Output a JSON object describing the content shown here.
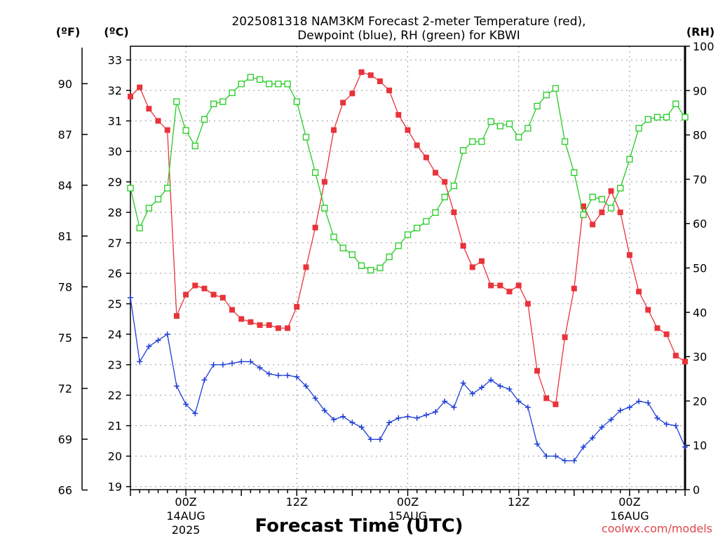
{
  "chart_data": {
    "type": "line",
    "title": "2025081318 NAM3KM Forecast 2-meter Temperature (red),",
    "title_line2": "Dewpoint (blue), RH (green) for KBWI",
    "xlabel": "Forecast Time (UTC)",
    "credit": "coolwx.com/models",
    "units": {
      "fahrenheit": "(ºF)",
      "celsius": "(ºC)",
      "rh": "(RH)"
    },
    "grid": true,
    "x": {
      "start_hour": 0,
      "end_hour": 60,
      "note_hours": "forecast hours from 2025081318"
    },
    "x_ticks": [
      {
        "hour": 6,
        "label": "00Z",
        "date": "14AUG",
        "year": "2025"
      },
      {
        "hour": 18,
        "label": "12Z",
        "date": "",
        "year": ""
      },
      {
        "hour": 30,
        "label": "00Z",
        "date": "15AUG",
        "year": ""
      },
      {
        "hour": 42,
        "label": "12Z",
        "date": "",
        "year": ""
      },
      {
        "hour": 54,
        "label": "00Z",
        "date": "16AUG",
        "year": ""
      }
    ],
    "celsius_axis": {
      "ylim": [
        18.9,
        33.45
      ],
      "ticks": [
        19,
        20,
        21,
        22,
        23,
        24,
        25,
        26,
        27,
        28,
        29,
        30,
        31,
        32,
        33
      ]
    },
    "fahrenheit_axis": {
      "ticks": [
        66,
        69,
        72,
        75,
        78,
        81,
        84,
        87,
        90
      ]
    },
    "rh_axis": {
      "ylim": [
        0,
        100
      ],
      "ticks": [
        0,
        10,
        20,
        30,
        40,
        50,
        60,
        70,
        80,
        90,
        100
      ]
    },
    "colors": {
      "temperature": "#e8333a",
      "dewpoint": "#1f3fd6",
      "rh": "#22cc22"
    },
    "series": [
      {
        "name": "Temperature",
        "axis": "celsius",
        "marker": "filled-square",
        "values": [
          31.8,
          32.1,
          31.4,
          31.0,
          30.7,
          24.6,
          25.3,
          25.6,
          25.5,
          25.3,
          25.2,
          24.8,
          24.5,
          24.4,
          24.3,
          24.3,
          24.2,
          24.2,
          24.9,
          26.2,
          27.5,
          29.0,
          30.7,
          31.6,
          31.9,
          32.6,
          32.5,
          32.3,
          32.0,
          31.2,
          30.7,
          30.2,
          29.8,
          29.3,
          29.0,
          28.0,
          26.9,
          26.2,
          26.4,
          25.6,
          25.6,
          25.4,
          25.6,
          25.0,
          22.8,
          21.9,
          21.7,
          23.9,
          25.5,
          28.2,
          27.6,
          28.0,
          28.7,
          28.0,
          26.6,
          25.4,
          24.8,
          24.2,
          24.0,
          23.3,
          23.1
        ]
      },
      {
        "name": "Dewpoint",
        "axis": "celsius",
        "marker": "plus",
        "values": [
          25.2,
          23.1,
          23.6,
          23.8,
          24.0,
          22.3,
          21.7,
          21.4,
          22.5,
          23.0,
          23.0,
          23.05,
          23.1,
          23.1,
          22.9,
          22.7,
          22.65,
          22.65,
          22.6,
          22.3,
          21.9,
          21.5,
          21.2,
          21.3,
          21.1,
          20.95,
          20.55,
          20.55,
          21.1,
          21.25,
          21.3,
          21.25,
          21.35,
          21.45,
          21.8,
          21.6,
          22.4,
          22.05,
          22.25,
          22.5,
          22.3,
          22.2,
          21.8,
          21.6,
          20.4,
          20.0,
          20.0,
          19.85,
          19.85,
          20.3,
          20.6,
          20.95,
          21.2,
          21.5,
          21.6,
          21.8,
          21.75,
          21.25,
          21.05,
          21.0,
          20.3
        ]
      },
      {
        "name": "RH",
        "axis": "rh",
        "marker": "open-square",
        "values": [
          68,
          59,
          63.5,
          65.5,
          68,
          87.5,
          81,
          77.5,
          83.5,
          87,
          87.5,
          89.5,
          91.5,
          93,
          92.5,
          91.5,
          91.5,
          91.5,
          87.5,
          79.5,
          71.5,
          63.5,
          57,
          54.5,
          53,
          50.5,
          49.5,
          50,
          52.5,
          55,
          57.5,
          59,
          60.5,
          62.5,
          66,
          68.5,
          76.5,
          78.5,
          78.5,
          83,
          82,
          82.5,
          79.5,
          81.5,
          86.5,
          89,
          90.5,
          78.5,
          71.5,
          62,
          66,
          65.5,
          63.5,
          68,
          74.5,
          81.5,
          83.5,
          84,
          84,
          87,
          84
        ]
      }
    ]
  }
}
